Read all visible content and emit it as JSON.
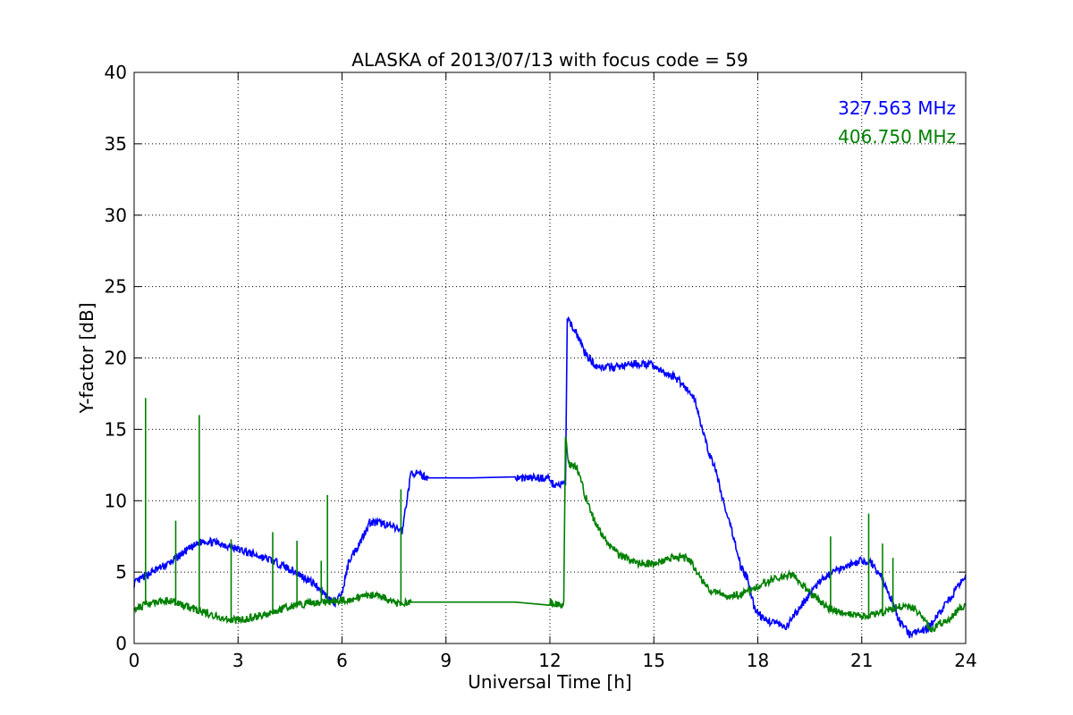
{
  "chart_data": {
    "type": "line",
    "title": "ALASKA of 2013/07/13 with focus code = 59",
    "xlabel": "Universal Time [h]",
    "ylabel": "Y-factor [dB]",
    "xlim": [
      0,
      24
    ],
    "ylim": [
      0,
      40
    ],
    "xticks": [
      0,
      3,
      6,
      9,
      12,
      15,
      18,
      21,
      24
    ],
    "yticks": [
      0,
      5,
      10,
      15,
      20,
      25,
      30,
      35,
      40
    ],
    "grid": true,
    "legend_position": "top-right",
    "series": [
      {
        "name": "327.563 MHz",
        "color": "#0000ff",
        "x": [
          0,
          0.5,
          1,
          1.5,
          2,
          2.5,
          3,
          3.5,
          4,
          4.5,
          5,
          5.3,
          5.6,
          5.8,
          6.0,
          6.2,
          6.5,
          6.8,
          7.2,
          7.5,
          7.75,
          7.8,
          8.0,
          8.5,
          11.0,
          12.0,
          12.05,
          12.3,
          12.45,
          12.5,
          12.6,
          12.8,
          13.0,
          13.3,
          13.6,
          14.0,
          14.5,
          15.0,
          15.3,
          15.6,
          15.9,
          16.2,
          16.5,
          16.8,
          17.1,
          17.3,
          17.5,
          17.7,
          17.9,
          18.2,
          18.5,
          18.8,
          19.0,
          19.3,
          19.6,
          20.0,
          20.5,
          21.0,
          21.3,
          21.6,
          21.9,
          22.1,
          22.4,
          22.6,
          22.9,
          23.2,
          23.5,
          23.8,
          24.0
        ],
        "y": [
          4.2,
          5.0,
          5.6,
          6.5,
          7.2,
          7.0,
          6.6,
          6.2,
          5.8,
          5.2,
          4.5,
          4.0,
          3.2,
          2.8,
          3.5,
          5.8,
          7.0,
          8.5,
          8.4,
          8.1,
          7.9,
          9.0,
          12.0,
          11.6,
          11.6,
          11.6,
          11.2,
          11.1,
          11.2,
          22.6,
          22.4,
          21.6,
          20.4,
          19.5,
          19.3,
          19.4,
          19.6,
          19.5,
          18.9,
          18.7,
          18.0,
          17.0,
          14.0,
          12.0,
          9.0,
          7.5,
          5.5,
          4.5,
          2.5,
          1.6,
          1.5,
          1.0,
          1.8,
          2.8,
          3.8,
          4.8,
          5.4,
          5.8,
          5.6,
          4.5,
          2.8,
          1.5,
          0.6,
          0.8,
          1.0,
          2.0,
          3.0,
          4.0,
          4.8
        ]
      },
      {
        "name": "406.750 MHz",
        "color": "#008000",
        "x": [
          0,
          0.5,
          1,
          1.5,
          2,
          2.5,
          3,
          3.5,
          4,
          4.5,
          5,
          5.5,
          6.0,
          6.5,
          7.0,
          7.5,
          8.0,
          10.0,
          12.0,
          12.1,
          12.4,
          12.45,
          12.55,
          12.8,
          13.0,
          13.3,
          13.6,
          14.0,
          14.5,
          15.0,
          15.5,
          16.0,
          16.5,
          17.0,
          17.5,
          18.0,
          18.5,
          19.0,
          19.5,
          20.0,
          20.5,
          21.0,
          21.5,
          22.0,
          22.5,
          23.0,
          23.5,
          24.0
        ],
        "y": [
          2.5,
          2.8,
          3.0,
          2.6,
          2.2,
          1.8,
          1.6,
          1.9,
          2.2,
          2.6,
          2.8,
          2.9,
          3.0,
          3.2,
          3.5,
          2.8,
          2.9,
          2.9,
          2.9,
          2.7,
          2.8,
          14.5,
          12.6,
          12.2,
          10.5,
          8.5,
          7.2,
          6.2,
          5.6,
          5.6,
          6.0,
          6.0,
          4.0,
          3.3,
          3.4,
          4.0,
          4.6,
          4.8,
          3.6,
          2.5,
          2.1,
          1.9,
          2.1,
          2.6,
          2.5,
          1.0,
          1.7,
          2.8
        ]
      }
    ],
    "spikes": {
      "406.750 MHz": [
        {
          "x": 0.33,
          "y": 17.2
        },
        {
          "x": 1.2,
          "y": 8.6
        },
        {
          "x": 1.88,
          "y": 16.0
        },
        {
          "x": 2.8,
          "y": 7.3
        },
        {
          "x": 4.0,
          "y": 7.8
        },
        {
          "x": 4.7,
          "y": 7.2
        },
        {
          "x": 5.4,
          "y": 5.8
        },
        {
          "x": 5.58,
          "y": 10.4
        },
        {
          "x": 7.7,
          "y": 10.8
        },
        {
          "x": 20.1,
          "y": 7.5
        },
        {
          "x": 21.2,
          "y": 9.1
        },
        {
          "x": 21.6,
          "y": 7.0
        },
        {
          "x": 21.9,
          "y": 6.0
        }
      ]
    }
  }
}
